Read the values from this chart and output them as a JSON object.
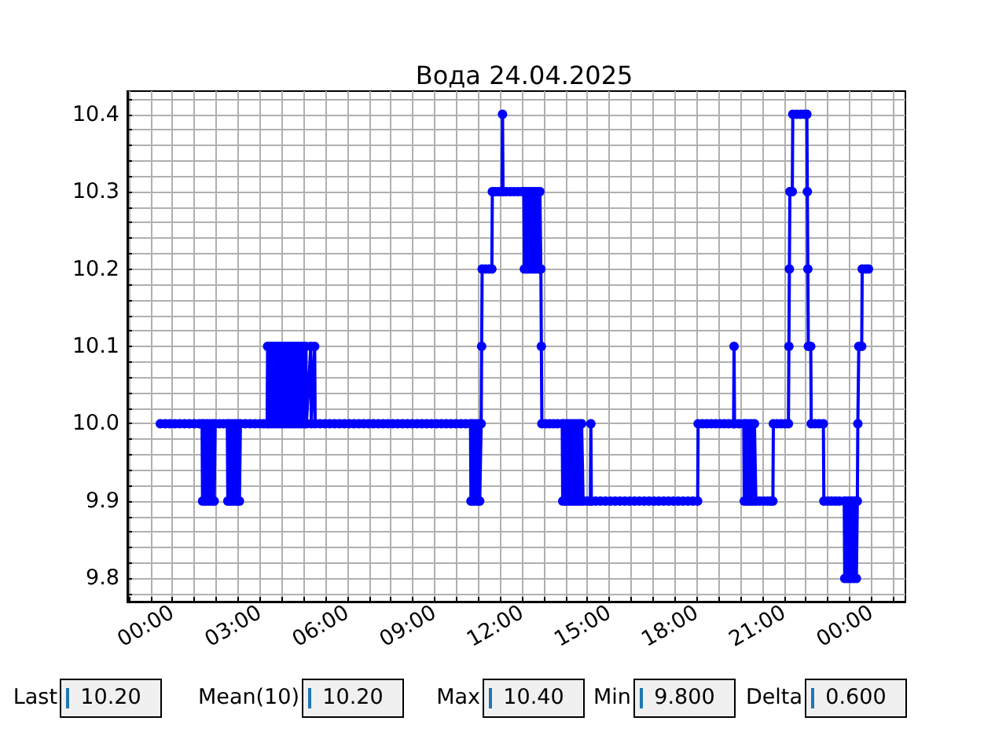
{
  "chart_data": {
    "type": "line",
    "title": "Вода 24.04.2025",
    "color": "#0000ff",
    "marker": "circle",
    "line_style": "solid",
    "grid": true,
    "x": [
      "2025-04-23T23:35",
      "2025-04-23T23:45",
      "2025-04-23T23:55",
      "2025-04-24T00:05",
      "2025-04-24T00:15",
      "2025-04-24T00:25",
      "2025-04-24T00:35",
      "2025-04-24T00:45",
      "2025-04-24T00:55",
      "2025-04-24T01:01",
      "2025-04-24T01:02",
      "2025-04-24T01:05",
      "2025-04-24T01:08",
      "2025-04-24T01:11",
      "2025-04-24T01:14",
      "2025-04-24T01:17",
      "2025-04-24T01:20",
      "2025-04-24T01:23",
      "2025-04-24T01:26",
      "2025-04-24T01:28",
      "2025-04-24T01:37",
      "2025-04-24T01:45",
      "2025-04-24T01:53",
      "2025-04-24T01:54",
      "2025-04-24T01:57",
      "2025-04-24T02:00",
      "2025-04-24T02:03",
      "2025-04-24T02:06",
      "2025-04-24T02:09",
      "2025-04-24T02:12",
      "2025-04-24T02:15",
      "2025-04-24T02:18",
      "2025-04-24T02:20",
      "2025-04-24T02:30",
      "2025-04-24T02:40",
      "2025-04-24T02:50",
      "2025-04-24T03:00",
      "2025-04-24T03:08",
      "2025-04-24T03:15",
      "2025-04-24T03:16",
      "2025-04-24T03:19",
      "2025-04-24T03:22",
      "2025-04-24T03:25",
      "2025-04-24T03:28",
      "2025-04-24T03:31",
      "2025-04-24T03:34",
      "2025-04-24T03:37",
      "2025-04-24T03:40",
      "2025-04-24T03:43",
      "2025-04-24T03:46",
      "2025-04-24T03:49",
      "2025-04-24T03:52",
      "2025-04-24T03:55",
      "2025-04-24T03:58",
      "2025-04-24T04:01",
      "2025-04-24T04:04",
      "2025-04-24T04:07",
      "2025-04-24T04:10",
      "2025-04-24T04:13",
      "2025-04-24T04:16",
      "2025-04-24T04:19",
      "2025-04-24T04:22",
      "2025-04-24T04:25",
      "2025-04-24T04:28",
      "2025-04-24T04:31",
      "2025-04-24T04:35",
      "2025-04-24T04:36",
      "2025-04-24T04:45",
      "2025-04-24T04:46",
      "2025-04-24T04:53",
      "2025-04-24T04:54",
      "2025-04-24T05:04",
      "2025-04-24T05:14",
      "2025-04-24T05:24",
      "2025-04-24T05:34",
      "2025-04-24T05:44",
      "2025-04-24T05:54",
      "2025-04-24T06:04",
      "2025-04-24T06:14",
      "2025-04-24T06:24",
      "2025-04-24T06:34",
      "2025-04-24T06:44",
      "2025-04-24T06:54",
      "2025-04-24T07:04",
      "2025-04-24T07:14",
      "2025-04-24T07:24",
      "2025-04-24T07:34",
      "2025-04-24T07:44",
      "2025-04-24T07:54",
      "2025-04-24T08:04",
      "2025-04-24T08:14",
      "2025-04-24T08:24",
      "2025-04-24T08:34",
      "2025-04-24T08:44",
      "2025-04-24T08:54",
      "2025-04-24T09:04",
      "2025-04-24T09:14",
      "2025-04-24T09:24",
      "2025-04-24T09:34",
      "2025-04-24T09:44",
      "2025-04-24T09:54",
      "2025-04-24T10:04",
      "2025-04-24T10:14",
      "2025-04-24T10:15",
      "2025-04-24T10:18",
      "2025-04-24T10:21",
      "2025-04-24T10:24",
      "2025-04-24T10:27",
      "2025-04-24T10:30",
      "2025-04-24T10:33",
      "2025-04-24T10:36",
      "2025-04-24T10:37",
      "2025-04-24T10:38",
      "2025-04-24T10:45",
      "2025-04-24T10:52",
      "2025-04-24T10:58",
      "2025-04-24T10:59",
      "2025-04-24T11:05",
      "2025-04-24T11:12",
      "2025-04-24T11:19",
      "2025-04-24T11:20",
      "2025-04-24T11:21",
      "2025-04-24T11:28",
      "2025-04-24T11:36",
      "2025-04-24T11:44",
      "2025-04-24T11:52",
      "2025-04-24T12:00",
      "2025-04-24T12:04",
      "2025-04-24T12:05",
      "2025-04-24T12:08",
      "2025-04-24T12:11",
      "2025-04-24T12:14",
      "2025-04-24T12:17",
      "2025-04-24T12:20",
      "2025-04-24T12:23",
      "2025-04-24T12:26",
      "2025-04-24T12:29",
      "2025-04-24T12:32",
      "2025-04-24T12:35",
      "2025-04-24T12:37",
      "2025-04-24T12:39",
      "2025-04-24T12:40",
      "2025-04-24T12:41",
      "2025-04-24T12:49",
      "2025-04-24T12:57",
      "2025-04-24T13:05",
      "2025-04-24T13:13",
      "2025-04-24T13:23",
      "2025-04-24T13:24",
      "2025-04-24T13:27",
      "2025-04-24T13:30",
      "2025-04-24T13:33",
      "2025-04-24T13:36",
      "2025-04-24T13:39",
      "2025-04-24T13:42",
      "2025-04-24T13:45",
      "2025-04-24T13:48",
      "2025-04-24T13:51",
      "2025-04-24T13:54",
      "2025-04-24T13:57",
      "2025-04-24T14:00",
      "2025-04-24T14:03",
      "2025-04-24T14:06",
      "2025-04-24T14:14",
      "2025-04-24T14:21",
      "2025-04-24T14:22",
      "2025-04-24T14:23",
      "2025-04-24T14:32",
      "2025-04-24T14:42",
      "2025-04-24T14:52",
      "2025-04-24T15:02",
      "2025-04-24T15:12",
      "2025-04-24T15:22",
      "2025-04-24T15:32",
      "2025-04-24T15:42",
      "2025-04-24T15:52",
      "2025-04-24T16:02",
      "2025-04-24T16:12",
      "2025-04-24T16:22",
      "2025-04-24T16:32",
      "2025-04-24T16:42",
      "2025-04-24T16:52",
      "2025-04-24T17:02",
      "2025-04-24T17:12",
      "2025-04-24T17:22",
      "2025-04-24T17:32",
      "2025-04-24T17:42",
      "2025-04-24T17:52",
      "2025-04-24T18:02",
      "2025-04-24T18:03",
      "2025-04-24T18:12",
      "2025-04-24T18:21",
      "2025-04-24T18:30",
      "2025-04-24T18:39",
      "2025-04-24T18:48",
      "2025-04-24T18:57",
      "2025-04-24T19:06",
      "2025-04-24T19:16",
      "2025-04-24T19:17",
      "2025-04-24T19:18",
      "2025-04-24T19:27",
      "2025-04-24T19:37",
      "2025-04-24T19:38",
      "2025-04-24T19:41",
      "2025-04-24T19:44",
      "2025-04-24T19:47",
      "2025-04-24T19:50",
      "2025-04-24T19:53",
      "2025-04-24T19:56",
      "2025-04-24T19:59",
      "2025-04-24T20:02",
      "2025-04-24T20:10",
      "2025-04-24T20:18",
      "2025-04-24T20:26",
      "2025-04-24T20:33",
      "2025-04-24T20:37",
      "2025-04-24T20:38",
      "2025-04-24T20:46",
      "2025-04-24T20:54",
      "2025-04-24T21:02",
      "2025-04-24T21:09",
      "2025-04-24T21:10",
      "2025-04-24T21:11",
      "2025-04-24T21:12",
      "2025-04-24T21:17",
      "2025-04-24T21:18",
      "2025-04-24T21:26",
      "2025-04-24T21:34",
      "2025-04-24T21:41",
      "2025-04-24T21:47",
      "2025-04-24T21:48",
      "2025-04-24T21:49",
      "2025-04-24T21:50",
      "2025-04-24T21:55",
      "2025-04-24T21:56",
      "2025-04-24T22:04",
      "2025-04-24T22:12",
      "2025-04-24T22:21",
      "2025-04-24T22:22",
      "2025-04-24T22:30",
      "2025-04-24T22:38",
      "2025-04-24T22:46",
      "2025-04-24T22:54",
      "2025-04-24T23:04",
      "2025-04-24T23:05",
      "2025-04-24T23:08",
      "2025-04-24T23:11",
      "2025-04-24T23:14",
      "2025-04-24T23:17",
      "2025-04-24T23:20",
      "2025-04-24T23:23",
      "2025-04-24T23:26",
      "2025-04-24T23:29",
      "2025-04-24T23:31",
      "2025-04-24T23:32",
      "2025-04-24T23:34",
      "2025-04-24T23:40",
      "2025-04-24T23:41",
      "2025-04-24T23:48",
      "2025-04-24T23:54"
    ],
    "values": [
      10,
      10,
      10,
      10,
      10,
      10,
      10,
      10,
      10,
      10,
      9.9,
      10,
      9.9,
      10,
      9.9,
      10,
      9.9,
      10,
      9.9,
      10,
      10,
      10,
      10,
      9.9,
      10,
      9.9,
      10,
      9.9,
      10,
      9.9,
      10,
      9.9,
      10,
      10,
      10,
      10,
      10,
      10,
      10,
      10.1,
      10,
      10.1,
      10,
      10.1,
      10,
      10.1,
      10,
      10.1,
      10,
      10.1,
      10,
      10.1,
      10,
      10.1,
      10,
      10.1,
      10,
      10.1,
      10,
      10.1,
      10,
      10.1,
      10,
      10.1,
      10,
      10.1,
      10,
      10.1,
      10,
      10.1,
      10,
      10,
      10,
      10,
      10,
      10,
      10,
      10,
      10,
      10,
      10,
      10,
      10,
      10,
      10,
      10,
      10,
      10,
      10,
      10,
      10,
      10,
      10,
      10,
      10,
      10,
      10,
      10,
      10,
      10,
      10,
      10,
      10,
      9.9,
      10,
      9.9,
      10,
      9.9,
      10,
      9.9,
      10,
      10.1,
      10.2,
      10.2,
      10.2,
      10.2,
      10.3,
      10.3,
      10.3,
      10.3,
      10.4,
      10.3,
      10.3,
      10.3,
      10.3,
      10.3,
      10.3,
      10.3,
      10.2,
      10.3,
      10.2,
      10.3,
      10.2,
      10.3,
      10.2,
      10.3,
      10.2,
      10.3,
      10.2,
      10.3,
      10.2,
      10.1,
      10,
      10,
      10,
      10,
      10,
      10,
      9.9,
      10,
      9.9,
      10,
      9.9,
      10,
      9.9,
      10,
      9.9,
      10,
      9.9,
      10,
      9.9,
      10,
      9.9,
      9.9,
      9.9,
      10,
      9.9,
      9.9,
      9.9,
      9.9,
      9.9,
      9.9,
      9.9,
      9.9,
      9.9,
      9.9,
      9.9,
      9.9,
      9.9,
      9.9,
      9.9,
      9.9,
      9.9,
      9.9,
      9.9,
      9.9,
      9.9,
      9.9,
      9.9,
      10,
      10,
      10,
      10,
      10,
      10,
      10,
      10,
      10,
      10.1,
      10,
      10,
      10,
      9.9,
      10,
      9.9,
      10,
      9.9,
      10,
      9.9,
      10,
      9.9,
      9.9,
      9.9,
      9.9,
      9.9,
      9.9,
      10,
      10,
      10,
      10,
      10,
      10.1,
      10.2,
      10.3,
      10.3,
      10.4,
      10.4,
      10.4,
      10.4,
      10.4,
      10.3,
      10.2,
      10.1,
      10.1,
      10,
      10,
      10,
      10,
      9.9,
      9.9,
      9.9,
      9.9,
      9.9,
      9.9,
      9.8,
      9.9,
      9.8,
      9.9,
      9.8,
      9.9,
      9.8,
      9.9,
      9.8,
      9.9,
      10,
      10.1,
      10.1,
      10.2,
      10.2,
      10.2
    ],
    "xlim": [
      "2025-04-23T22:27",
      "2025-04-25T01:10"
    ],
    "xticks": [
      {
        "value": "2025-04-23T22:30",
        "label": null
      },
      {
        "value": "2025-04-23T23:15",
        "label": null
      },
      {
        "value": "2025-04-24T00:00",
        "label": "00:00"
      },
      {
        "value": "2025-04-24T00:45",
        "label": null
      },
      {
        "value": "2025-04-24T01:30",
        "label": null
      },
      {
        "value": "2025-04-24T02:15",
        "label": null
      },
      {
        "value": "2025-04-24T03:00",
        "label": "03:00"
      },
      {
        "value": "2025-04-24T03:45",
        "label": null
      },
      {
        "value": "2025-04-24T04:30",
        "label": null
      },
      {
        "value": "2025-04-24T05:15",
        "label": null
      },
      {
        "value": "2025-04-24T06:00",
        "label": "06:00"
      },
      {
        "value": "2025-04-24T06:45",
        "label": null
      },
      {
        "value": "2025-04-24T07:30",
        "label": null
      },
      {
        "value": "2025-04-24T08:15",
        "label": null
      },
      {
        "value": "2025-04-24T09:00",
        "label": "09:00"
      },
      {
        "value": "2025-04-24T09:45",
        "label": null
      },
      {
        "value": "2025-04-24T10:30",
        "label": null
      },
      {
        "value": "2025-04-24T11:15",
        "label": null
      },
      {
        "value": "2025-04-24T12:00",
        "label": "12:00"
      },
      {
        "value": "2025-04-24T12:45",
        "label": null
      },
      {
        "value": "2025-04-24T13:30",
        "label": null
      },
      {
        "value": "2025-04-24T14:15",
        "label": null
      },
      {
        "value": "2025-04-24T15:00",
        "label": "15:00"
      },
      {
        "value": "2025-04-24T15:45",
        "label": null
      },
      {
        "value": "2025-04-24T16:30",
        "label": null
      },
      {
        "value": "2025-04-24T17:15",
        "label": null
      },
      {
        "value": "2025-04-24T18:00",
        "label": "18:00"
      },
      {
        "value": "2025-04-24T18:45",
        "label": null
      },
      {
        "value": "2025-04-24T19:30",
        "label": null
      },
      {
        "value": "2025-04-24T20:15",
        "label": null
      },
      {
        "value": "2025-04-24T21:00",
        "label": "21:00"
      },
      {
        "value": "2025-04-24T21:45",
        "label": null
      },
      {
        "value": "2025-04-24T22:30",
        "label": null
      },
      {
        "value": "2025-04-24T23:15",
        "label": null
      },
      {
        "value": "2025-04-25T00:00",
        "label": "00:00"
      },
      {
        "value": "2025-04-25T00:45",
        "label": null
      }
    ],
    "ylim": [
      9.77,
      10.43
    ],
    "yticks": [
      {
        "value": 9.78,
        "label": null
      },
      9.8,
      {
        "value": 9.82,
        "label": null
      },
      {
        "value": 9.84,
        "label": null
      },
      {
        "value": 9.86,
        "label": null
      },
      {
        "value": 9.88,
        "label": null
      },
      9.9,
      {
        "value": 9.92,
        "label": null
      },
      {
        "value": 9.94,
        "label": null
      },
      {
        "value": 9.96,
        "label": null
      },
      {
        "value": 9.98,
        "label": null
      },
      {
        "value": 10,
        "label": "10.0"
      },
      {
        "value": 10.02,
        "label": null
      },
      {
        "value": 10.04,
        "label": null
      },
      {
        "value": 10.06,
        "label": null
      },
      {
        "value": 10.08,
        "label": null
      },
      10.1,
      {
        "value": 10.12,
        "label": null
      },
      {
        "value": 10.14,
        "label": null
      },
      {
        "value": 10.16,
        "label": null
      },
      {
        "value": 10.18,
        "label": null
      },
      10.2,
      {
        "value": 10.22,
        "label": null
      },
      {
        "value": 10.24,
        "label": null
      },
      {
        "value": 10.26,
        "label": null
      },
      {
        "value": 10.28,
        "label": null
      },
      10.3,
      {
        "value": 10.32,
        "label": null
      },
      {
        "value": 10.34,
        "label": null
      },
      {
        "value": 10.36,
        "label": null
      },
      {
        "value": 10.38,
        "label": null
      },
      10.4,
      {
        "value": 10.42,
        "label": null
      }
    ],
    "annotations": [
      "Last",
      "10.20",
      "Mean(10)",
      "10.20",
      "Max",
      "10.40",
      "Min",
      "9.800",
      "Delta",
      "0.600"
    ]
  }
}
